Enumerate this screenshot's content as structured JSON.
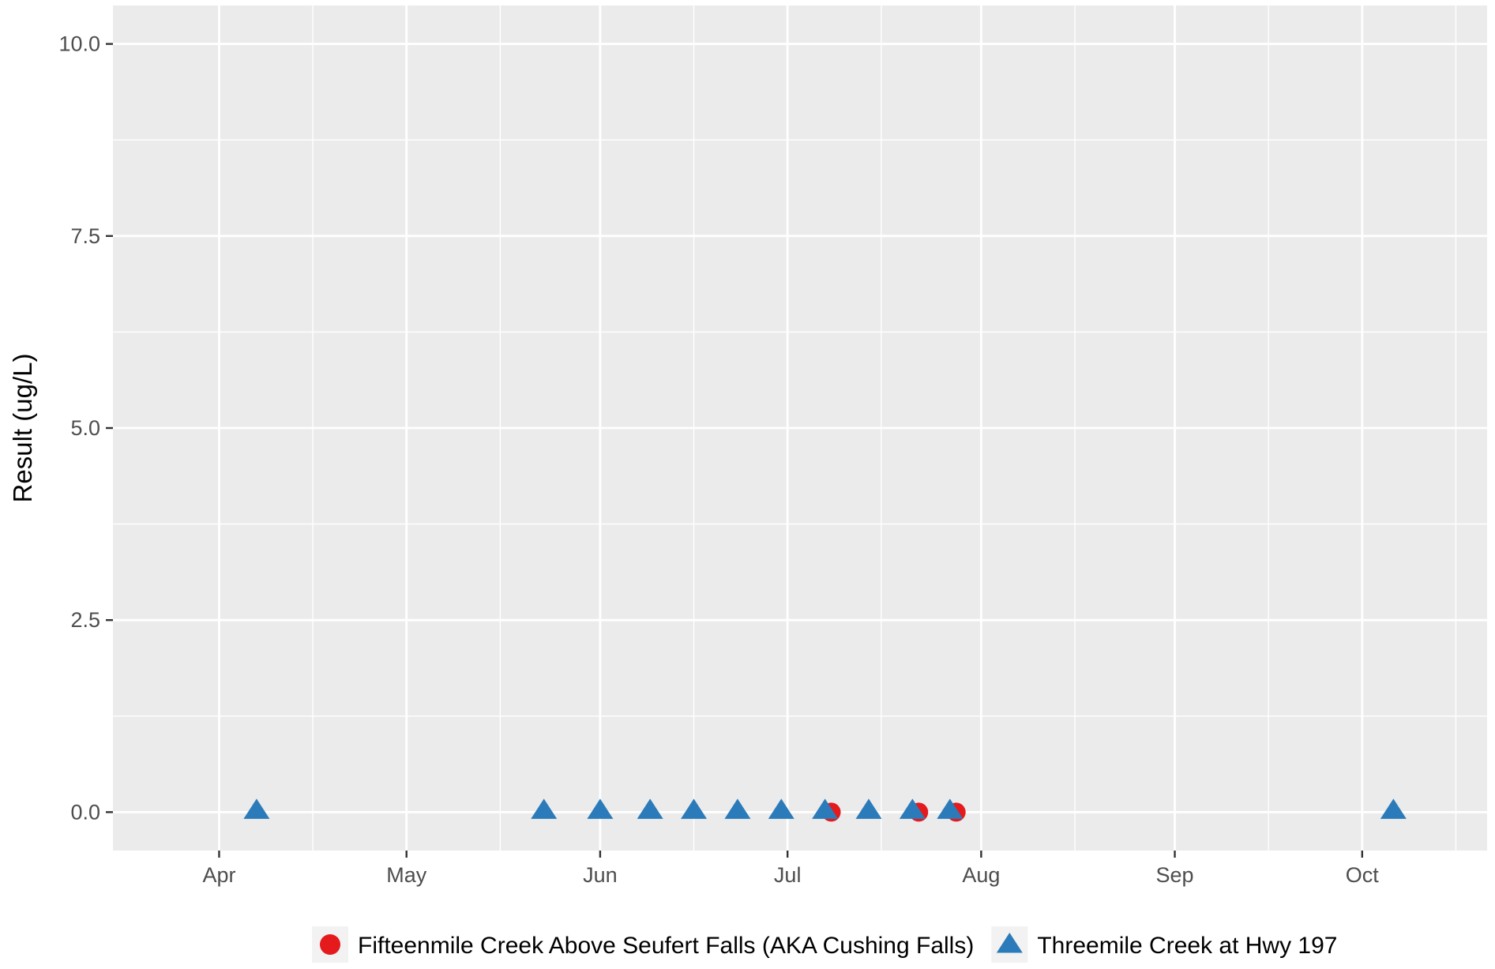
{
  "chart_data": {
    "type": "scatter",
    "title": "",
    "xlabel": "",
    "ylabel": "Result (ug/L)",
    "x_axis": {
      "kind": "date",
      "range": [
        "2019-03-15",
        "2019-10-21"
      ],
      "ticks": [
        {
          "date": "2019-04-01",
          "label": "Apr"
        },
        {
          "date": "2019-05-01",
          "label": "May"
        },
        {
          "date": "2019-06-01",
          "label": "Jun"
        },
        {
          "date": "2019-07-01",
          "label": "Jul"
        },
        {
          "date": "2019-08-01",
          "label": "Aug"
        },
        {
          "date": "2019-09-01",
          "label": "Sep"
        },
        {
          "date": "2019-10-01",
          "label": "Oct"
        }
      ],
      "minor_gridlines": [
        "2019-04-16",
        "2019-05-16",
        "2019-06-16",
        "2019-07-16",
        "2019-08-16",
        "2019-09-16",
        "2019-10-16"
      ]
    },
    "y_axis": {
      "range": [
        -0.5,
        10.5
      ],
      "ticks": [
        {
          "value": 0,
          "label": "0.0"
        },
        {
          "value": 2.5,
          "label": "2.5"
        },
        {
          "value": 5,
          "label": "5.0"
        },
        {
          "value": 7.5,
          "label": "7.5"
        },
        {
          "value": 10,
          "label": "10.0"
        }
      ],
      "minor_gridlines": [
        1.25,
        3.75,
        6.25,
        8.75
      ]
    },
    "grid": true,
    "legend_position": "bottom",
    "series": [
      {
        "name": "Fifteenmile Creek Above Seufert Falls (AKA Cushing Falls)",
        "marker": "circle",
        "color": "#e41a1c",
        "points": [
          {
            "x": "2019-07-08",
            "y": 0
          },
          {
            "x": "2019-07-22",
            "y": 0
          },
          {
            "x": "2019-07-28",
            "y": 0
          }
        ]
      },
      {
        "name": "Threemile Creek at Hwy 197",
        "marker": "triangle",
        "color": "#2b7bba",
        "points": [
          {
            "x": "2019-04-07",
            "y": 0
          },
          {
            "x": "2019-05-23",
            "y": 0
          },
          {
            "x": "2019-06-01",
            "y": 0
          },
          {
            "x": "2019-06-09",
            "y": 0
          },
          {
            "x": "2019-06-16",
            "y": 0
          },
          {
            "x": "2019-06-23",
            "y": 0
          },
          {
            "x": "2019-06-30",
            "y": 0
          },
          {
            "x": "2019-07-07",
            "y": 0
          },
          {
            "x": "2019-07-14",
            "y": 0
          },
          {
            "x": "2019-07-21",
            "y": 0
          },
          {
            "x": "2019-07-27",
            "y": 0
          },
          {
            "x": "2019-10-06",
            "y": 0
          }
        ]
      }
    ],
    "colors": {
      "panel_background": "#ebebeb",
      "gridline": "#ffffff",
      "tick_label": "#4d4d4d"
    }
  }
}
